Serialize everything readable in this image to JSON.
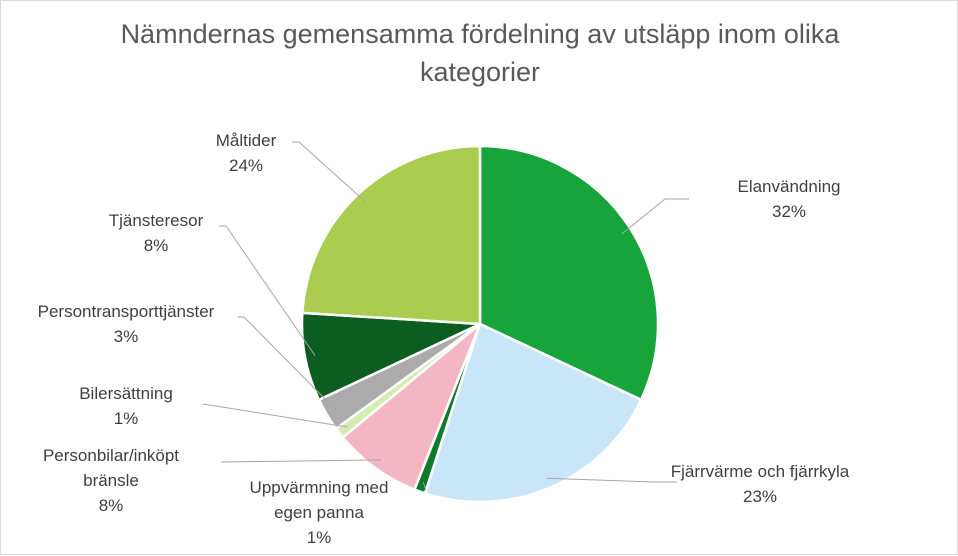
{
  "chart_data": {
    "type": "pie",
    "title": "Nämndernas gemensamma fördelning av utsläpp inom olika kategorier",
    "title_lines": [
      "Nämndernas gemensamma fördelning av utsläpp inom olika",
      "kategorier"
    ],
    "slices": [
      {
        "label": "Elanvändning",
        "label_lines": [
          "Elanvändning"
        ],
        "value": 32,
        "value_label": "32%",
        "color": "#17a43a"
      },
      {
        "label": "Fjärrvärme och fjärrkyla",
        "label_lines": [
          "Fjärrvärme och fjärrkyla"
        ],
        "value": 23,
        "value_label": "23%",
        "color": "#c9e6f8"
      },
      {
        "label": "Uppvärmning med egen panna",
        "label_lines": [
          "Uppvärmning med",
          "egen panna"
        ],
        "value": 1,
        "value_label": "1%",
        "color": "#0e7a2c"
      },
      {
        "label": "Personbilar/inköpt bränsle",
        "label_lines": [
          "Personbilar/inköpt",
          "bränsle"
        ],
        "value": 8,
        "value_label": "8%",
        "color": "#f4b6c5"
      },
      {
        "label": "Bilersättning",
        "label_lines": [
          "Bilersättning"
        ],
        "value": 1,
        "value_label": "1%",
        "color": "#d6ebb0"
      },
      {
        "label": "Persontransporttjänster",
        "label_lines": [
          "Persontransporttjänster"
        ],
        "value": 3,
        "value_label": "3%",
        "color": "#ababab"
      },
      {
        "label": "Tjänsteresor",
        "label_lines": [
          "Tjänsteresor"
        ],
        "value": 8,
        "value_label": "8%",
        "color": "#0b5e1f"
      },
      {
        "label": "Måltider",
        "label_lines": [
          "Måltider"
        ],
        "value": 24,
        "value_label": "24%",
        "color": "#aacd4f"
      }
    ],
    "legend": "none"
  }
}
